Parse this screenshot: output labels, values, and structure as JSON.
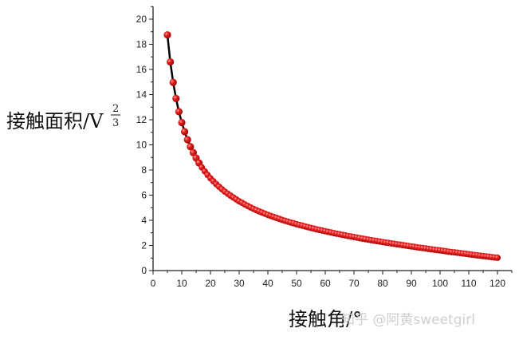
{
  "chart_data": {
    "type": "scatter",
    "title": "",
    "xlabel": "接触角/°",
    "ylabel": "接触面积/V",
    "ylabel_exponent": {
      "numerator": "2",
      "denominator": "3"
    },
    "xlim": [
      0,
      125
    ],
    "ylim": [
      0,
      21
    ],
    "xticks": [
      0,
      10,
      20,
      30,
      40,
      50,
      60,
      70,
      80,
      90,
      100,
      110,
      120
    ],
    "yticks": [
      0,
      2,
      4,
      6,
      8,
      10,
      12,
      14,
      16,
      18,
      20
    ],
    "grid": false,
    "legend": "none",
    "marker_color": "#e01818",
    "line_color": "#000000",
    "x": [
      5,
      6,
      7,
      8,
      9,
      10,
      11,
      12,
      13,
      14,
      15,
      16,
      17,
      18,
      19,
      20,
      21,
      22,
      23,
      24,
      25,
      26,
      27,
      28,
      29,
      30,
      31,
      32,
      33,
      34,
      35,
      36,
      37,
      38,
      39,
      40,
      41,
      42,
      43,
      44,
      45,
      46,
      47,
      48,
      49,
      50,
      51,
      52,
      53,
      54,
      55,
      56,
      57,
      58,
      59,
      60,
      61,
      62,
      63,
      64,
      65,
      66,
      67,
      68,
      69,
      70,
      71,
      72,
      73,
      74,
      75,
      76,
      77,
      78,
      79,
      80,
      81,
      82,
      83,
      84,
      85,
      86,
      87,
      88,
      89,
      90,
      91,
      92,
      93,
      94,
      95,
      96,
      97,
      98,
      99,
      100,
      101,
      102,
      103,
      104,
      105,
      106,
      107,
      108,
      109,
      110,
      111,
      112,
      113,
      114,
      115,
      116,
      117,
      118,
      119,
      120
    ],
    "y": [
      18.75,
      16.6,
      14.97,
      13.69,
      12.64,
      11.78,
      11.05,
      10.41,
      9.86,
      9.38,
      8.95,
      8.56,
      8.21,
      7.9,
      7.61,
      7.34,
      7.11,
      6.88,
      6.67,
      6.47,
      6.28,
      6.12,
      5.96,
      5.81,
      5.66,
      5.51,
      5.39,
      5.26,
      5.14,
      5.02,
      4.91,
      4.81,
      4.71,
      4.62,
      4.52,
      4.43,
      4.35,
      4.27,
      4.19,
      4.11,
      4.03,
      3.96,
      3.89,
      3.82,
      3.76,
      3.69,
      3.63,
      3.57,
      3.51,
      3.45,
      3.39,
      3.34,
      3.28,
      3.23,
      3.18,
      3.13,
      3.08,
      3.03,
      2.98,
      2.93,
      2.89,
      2.84,
      2.8,
      2.75,
      2.71,
      2.67,
      2.63,
      2.58,
      2.54,
      2.5,
      2.46,
      2.42,
      2.38,
      2.35,
      2.31,
      2.27,
      2.23,
      2.2,
      2.16,
      2.13,
      2.09,
      2.06,
      2.02,
      1.99,
      1.95,
      1.92,
      1.89,
      1.85,
      1.82,
      1.79,
      1.76,
      1.72,
      1.69,
      1.66,
      1.63,
      1.6,
      1.57,
      1.54,
      1.5,
      1.47,
      1.45,
      1.42,
      1.39,
      1.36,
      1.33,
      1.3,
      1.27,
      1.24,
      1.21,
      1.18,
      1.15,
      1.13,
      1.1,
      1.07,
      1.04,
      1.02
    ]
  },
  "watermark": "知乎 @阿黄sweetgirl"
}
